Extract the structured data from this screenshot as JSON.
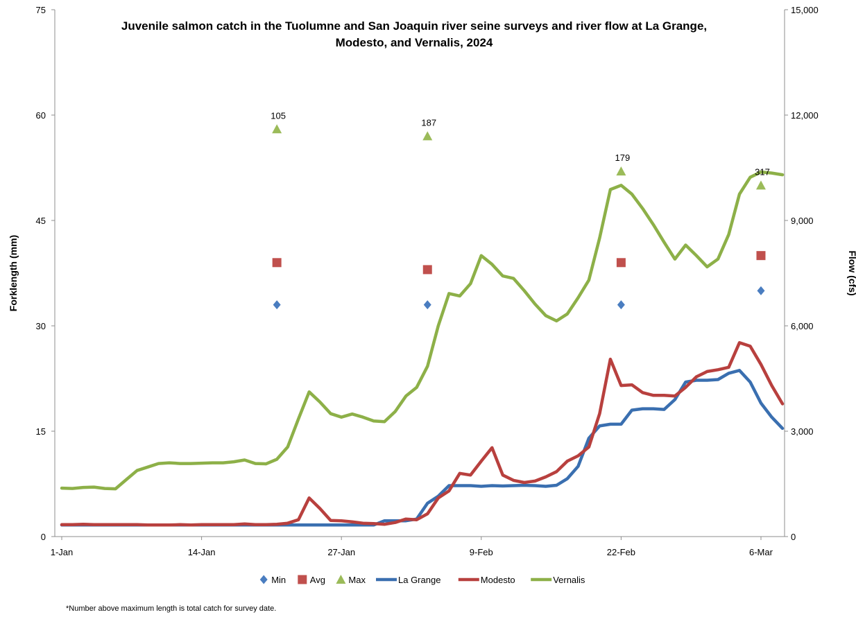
{
  "chart_data": {
    "type": "line",
    "title_lines": [
      "Juvenile salmon catch in the Tuolumne and San Joaquin river seine surveys and river flow at La Grange,",
      "Modesto, and Vernalis, 2024"
    ],
    "ylabel_left": "Forklength (mm)",
    "ylabel_right": "Flow (cfs)",
    "ylim_left": [
      0,
      75
    ],
    "ylim_right": [
      0,
      15000
    ],
    "left_ticks": [
      "0",
      "15",
      "30",
      "45",
      "60",
      "75"
    ],
    "right_ticks": [
      "0",
      "3,000",
      "6,000",
      "9,000",
      "12,000",
      "15,000"
    ],
    "x_range": [
      "2024-01-01",
      "2024-03-08"
    ],
    "x_tick_labels": [
      {
        "date": "2024-01-01",
        "label": "1-Jan"
      },
      {
        "date": "2024-01-14",
        "label": "14-Jan"
      },
      {
        "date": "2024-01-27",
        "label": "27-Jan"
      },
      {
        "date": "2024-02-09",
        "label": "9-Feb"
      },
      {
        "date": "2024-02-22",
        "label": "22-Feb"
      },
      {
        "date": "2024-03-06",
        "label": "6-Mar"
      }
    ],
    "grid": false,
    "legend_position": "bottom",
    "survey_series": [
      {
        "name": "Min",
        "marker": "diamond",
        "color": "#4a7dc0",
        "points": [
          {
            "x": "2024-01-21",
            "y": 33
          },
          {
            "x": "2024-02-04",
            "y": 33
          },
          {
            "x": "2024-02-22",
            "y": 33
          },
          {
            "x": "2024-03-06",
            "y": 35
          }
        ]
      },
      {
        "name": "Avg",
        "marker": "square",
        "color": "#c0504d",
        "points": [
          {
            "x": "2024-01-21",
            "y": 39
          },
          {
            "x": "2024-02-04",
            "y": 38
          },
          {
            "x": "2024-02-22",
            "y": 39
          },
          {
            "x": "2024-03-06",
            "y": 40
          }
        ]
      },
      {
        "name": "Max",
        "marker": "triangle",
        "color": "#9bbb59",
        "points": [
          {
            "x": "2024-01-21",
            "y": 58
          },
          {
            "x": "2024-02-04",
            "y": 57
          },
          {
            "x": "2024-02-22",
            "y": 52
          },
          {
            "x": "2024-03-06",
            "y": 50
          }
        ]
      }
    ],
    "catch_labels": [
      {
        "x": "2024-01-21",
        "label": "105"
      },
      {
        "x": "2024-02-04",
        "label": "187"
      },
      {
        "x": "2024-02-22",
        "label": "179"
      },
      {
        "x": "2024-03-06",
        "label": "317"
      }
    ],
    "flow_series": [
      {
        "name": "La Grange",
        "color": "#3a6fb0",
        "axis": "right",
        "points": [
          [
            "2024-01-01",
            330
          ],
          [
            "2024-01-02",
            330
          ],
          [
            "2024-01-03",
            330
          ],
          [
            "2024-01-04",
            330
          ],
          [
            "2024-01-05",
            330
          ],
          [
            "2024-01-06",
            330
          ],
          [
            "2024-01-07",
            330
          ],
          [
            "2024-01-08",
            330
          ],
          [
            "2024-01-09",
            330
          ],
          [
            "2024-01-10",
            330
          ],
          [
            "2024-01-11",
            330
          ],
          [
            "2024-01-12",
            330
          ],
          [
            "2024-01-13",
            330
          ],
          [
            "2024-01-14",
            330
          ],
          [
            "2024-01-15",
            330
          ],
          [
            "2024-01-16",
            330
          ],
          [
            "2024-01-17",
            330
          ],
          [
            "2024-01-18",
            330
          ],
          [
            "2024-01-19",
            330
          ],
          [
            "2024-01-20",
            330
          ],
          [
            "2024-01-21",
            330
          ],
          [
            "2024-01-22",
            330
          ],
          [
            "2024-01-23",
            330
          ],
          [
            "2024-01-24",
            330
          ],
          [
            "2024-01-25",
            330
          ],
          [
            "2024-01-26",
            330
          ],
          [
            "2024-01-27",
            330
          ],
          [
            "2024-01-28",
            330
          ],
          [
            "2024-01-29",
            330
          ],
          [
            "2024-01-30",
            330
          ],
          [
            "2024-01-31",
            450
          ],
          [
            "2024-02-01",
            450
          ],
          [
            "2024-02-02",
            450
          ],
          [
            "2024-02-03",
            500
          ],
          [
            "2024-02-04",
            950
          ],
          [
            "2024-02-05",
            1150
          ],
          [
            "2024-02-06",
            1450
          ],
          [
            "2024-02-07",
            1450
          ],
          [
            "2024-02-08",
            1450
          ],
          [
            "2024-02-09",
            1430
          ],
          [
            "2024-02-10",
            1450
          ],
          [
            "2024-02-11",
            1440
          ],
          [
            "2024-02-12",
            1450
          ],
          [
            "2024-02-13",
            1460
          ],
          [
            "2024-02-14",
            1450
          ],
          [
            "2024-02-15",
            1430
          ],
          [
            "2024-02-16",
            1460
          ],
          [
            "2024-02-17",
            1650
          ],
          [
            "2024-02-18",
            2000
          ],
          [
            "2024-02-19",
            2800
          ],
          [
            "2024-02-20",
            3150
          ],
          [
            "2024-02-21",
            3200
          ],
          [
            "2024-02-22",
            3200
          ],
          [
            "2024-02-23",
            3600
          ],
          [
            "2024-02-24",
            3640
          ],
          [
            "2024-02-25",
            3640
          ],
          [
            "2024-02-26",
            3620
          ],
          [
            "2024-02-27",
            3900
          ],
          [
            "2024-02-28",
            4400
          ],
          [
            "2024-02-29",
            4450
          ],
          [
            "2024-03-01",
            4450
          ],
          [
            "2024-03-02",
            4470
          ],
          [
            "2024-03-03",
            4650
          ],
          [
            "2024-03-04",
            4730
          ],
          [
            "2024-03-05",
            4400
          ],
          [
            "2024-03-06",
            3800
          ],
          [
            "2024-03-07",
            3400
          ],
          [
            "2024-03-08",
            3080
          ]
        ]
      },
      {
        "name": "Modesto",
        "color": "#b8403e",
        "axis": "right",
        "points": [
          [
            "2024-01-01",
            340
          ],
          [
            "2024-01-02",
            340
          ],
          [
            "2024-01-03",
            350
          ],
          [
            "2024-01-04",
            340
          ],
          [
            "2024-01-05",
            340
          ],
          [
            "2024-01-06",
            340
          ],
          [
            "2024-01-07",
            340
          ],
          [
            "2024-01-08",
            340
          ],
          [
            "2024-01-09",
            330
          ],
          [
            "2024-01-10",
            330
          ],
          [
            "2024-01-11",
            330
          ],
          [
            "2024-01-12",
            340
          ],
          [
            "2024-01-13",
            330
          ],
          [
            "2024-01-14",
            340
          ],
          [
            "2024-01-15",
            340
          ],
          [
            "2024-01-16",
            340
          ],
          [
            "2024-01-17",
            340
          ],
          [
            "2024-01-18",
            360
          ],
          [
            "2024-01-19",
            340
          ],
          [
            "2024-01-20",
            340
          ],
          [
            "2024-01-21",
            350
          ],
          [
            "2024-01-22",
            380
          ],
          [
            "2024-01-23",
            480
          ],
          [
            "2024-01-24",
            1100
          ],
          [
            "2024-01-25",
            800
          ],
          [
            "2024-01-26",
            460
          ],
          [
            "2024-01-27",
            450
          ],
          [
            "2024-01-28",
            420
          ],
          [
            "2024-01-29",
            380
          ],
          [
            "2024-01-30",
            370
          ],
          [
            "2024-01-31",
            350
          ],
          [
            "2024-02-01",
            400
          ],
          [
            "2024-02-02",
            500
          ],
          [
            "2024-02-03",
            480
          ],
          [
            "2024-02-04",
            650
          ],
          [
            "2024-02-05",
            1100
          ],
          [
            "2024-02-06",
            1300
          ],
          [
            "2024-02-07",
            1800
          ],
          [
            "2024-02-08",
            1750
          ],
          [
            "2024-02-09",
            2150
          ],
          [
            "2024-02-10",
            2530
          ],
          [
            "2024-02-11",
            1750
          ],
          [
            "2024-02-12",
            1600
          ],
          [
            "2024-02-13",
            1540
          ],
          [
            "2024-02-14",
            1580
          ],
          [
            "2024-02-15",
            1700
          ],
          [
            "2024-02-16",
            1850
          ],
          [
            "2024-02-17",
            2150
          ],
          [
            "2024-02-18",
            2300
          ],
          [
            "2024-02-19",
            2550
          ],
          [
            "2024-02-20",
            3500
          ],
          [
            "2024-02-21",
            5050
          ],
          [
            "2024-02-22",
            4300
          ],
          [
            "2024-02-23",
            4320
          ],
          [
            "2024-02-24",
            4100
          ],
          [
            "2024-02-25",
            4020
          ],
          [
            "2024-02-26",
            4020
          ],
          [
            "2024-02-27",
            4000
          ],
          [
            "2024-02-28",
            4250
          ],
          [
            "2024-02-29",
            4550
          ],
          [
            "2024-03-01",
            4700
          ],
          [
            "2024-03-02",
            4750
          ],
          [
            "2024-03-03",
            4820
          ],
          [
            "2024-03-04",
            5520
          ],
          [
            "2024-03-05",
            5420
          ],
          [
            "2024-03-06",
            4900
          ],
          [
            "2024-03-07",
            4300
          ],
          [
            "2024-03-08",
            3780
          ]
        ]
      },
      {
        "name": "Vernalis",
        "color": "#8db048",
        "axis": "right",
        "points": [
          [
            "2024-01-01",
            1380
          ],
          [
            "2024-01-02",
            1370
          ],
          [
            "2024-01-03",
            1400
          ],
          [
            "2024-01-04",
            1410
          ],
          [
            "2024-01-05",
            1370
          ],
          [
            "2024-01-06",
            1360
          ],
          [
            "2024-01-07",
            1620
          ],
          [
            "2024-01-08",
            1880
          ],
          [
            "2024-01-09",
            1980
          ],
          [
            "2024-01-10",
            2080
          ],
          [
            "2024-01-11",
            2100
          ],
          [
            "2024-01-12",
            2080
          ],
          [
            "2024-01-13",
            2080
          ],
          [
            "2024-01-14",
            2090
          ],
          [
            "2024-01-15",
            2100
          ],
          [
            "2024-01-16",
            2100
          ],
          [
            "2024-01-17",
            2130
          ],
          [
            "2024-01-18",
            2180
          ],
          [
            "2024-01-19",
            2080
          ],
          [
            "2024-01-20",
            2070
          ],
          [
            "2024-01-21",
            2200
          ],
          [
            "2024-01-22",
            2550
          ],
          [
            "2024-01-23",
            3350
          ],
          [
            "2024-01-24",
            4120
          ],
          [
            "2024-01-25",
            3830
          ],
          [
            "2024-01-26",
            3500
          ],
          [
            "2024-01-27",
            3400
          ],
          [
            "2024-01-28",
            3490
          ],
          [
            "2024-01-29",
            3400
          ],
          [
            "2024-01-30",
            3290
          ],
          [
            "2024-01-31",
            3270
          ],
          [
            "2024-02-01",
            3560
          ],
          [
            "2024-02-02",
            4000
          ],
          [
            "2024-02-03",
            4250
          ],
          [
            "2024-02-04",
            4850
          ],
          [
            "2024-02-05",
            6000
          ],
          [
            "2024-02-06",
            6920
          ],
          [
            "2024-02-07",
            6850
          ],
          [
            "2024-02-08",
            7200
          ],
          [
            "2024-02-09",
            8000
          ],
          [
            "2024-02-10",
            7750
          ],
          [
            "2024-02-11",
            7420
          ],
          [
            "2024-02-12",
            7350
          ],
          [
            "2024-02-13",
            7000
          ],
          [
            "2024-02-14",
            6620
          ],
          [
            "2024-02-15",
            6290
          ],
          [
            "2024-02-16",
            6140
          ],
          [
            "2024-02-17",
            6340
          ],
          [
            "2024-02-18",
            6800
          ],
          [
            "2024-02-19",
            7300
          ],
          [
            "2024-02-20",
            8500
          ],
          [
            "2024-02-21",
            9880
          ],
          [
            "2024-02-22",
            10000
          ],
          [
            "2024-02-23",
            9750
          ],
          [
            "2024-02-24",
            9340
          ],
          [
            "2024-02-25",
            8880
          ],
          [
            "2024-02-26",
            8380
          ],
          [
            "2024-02-27",
            7900
          ],
          [
            "2024-02-28",
            8300
          ],
          [
            "2024-02-29",
            8000
          ],
          [
            "2024-03-01",
            7680
          ],
          [
            "2024-03-02",
            7900
          ],
          [
            "2024-03-03",
            8600
          ],
          [
            "2024-03-04",
            9750
          ],
          [
            "2024-03-05",
            10230
          ],
          [
            "2024-03-06",
            10380
          ],
          [
            "2024-03-07",
            10350
          ],
          [
            "2024-03-08",
            10300
          ]
        ]
      }
    ],
    "legend_order": [
      "Min",
      "Avg",
      "Max",
      "La Grange",
      "Modesto",
      "Vernalis"
    ]
  },
  "footnote": "*Number above maximum length is total catch for survey date."
}
